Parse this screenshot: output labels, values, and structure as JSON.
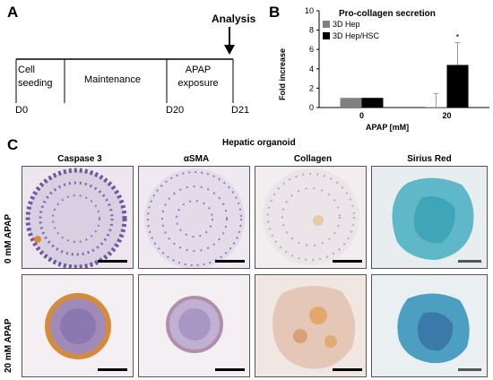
{
  "panel_a": {
    "letter": "A",
    "analysis_label": "Analysis",
    "phases": [
      "Cell\nseeding",
      "Maintenance",
      "APAP\nexposure"
    ],
    "days": [
      "D0",
      "D20",
      "D21"
    ]
  },
  "panel_b": {
    "letter": "B"
  },
  "chart_data": {
    "type": "bar",
    "title": "Pro-collagen secretion",
    "xlabel": "APAP [mM]",
    "ylabel": "Fold increase",
    "categories": [
      "0",
      "20"
    ],
    "ylim": [
      0,
      10
    ],
    "yticks": [
      "0",
      "2",
      "4",
      "6",
      "8",
      "10"
    ],
    "series": [
      {
        "name": "3D Hep",
        "color": "#808080",
        "values": [
          1.0,
          0.05
        ],
        "error": [
          0.0,
          1.4
        ]
      },
      {
        "name": "3D Hep/HSC",
        "color": "#000000",
        "values": [
          1.0,
          4.4
        ],
        "error": [
          0.0,
          2.3
        ]
      }
    ],
    "annotations": [
      "*"
    ],
    "legend": "top-left"
  },
  "panel_c": {
    "letter": "C",
    "title": "Hepatic organoid",
    "columns": [
      "Caspase 3",
      "αSMA",
      "Collagen",
      "Sirius Red"
    ],
    "rows": [
      "0 mM APAP",
      "20 mM APAP"
    ]
  }
}
